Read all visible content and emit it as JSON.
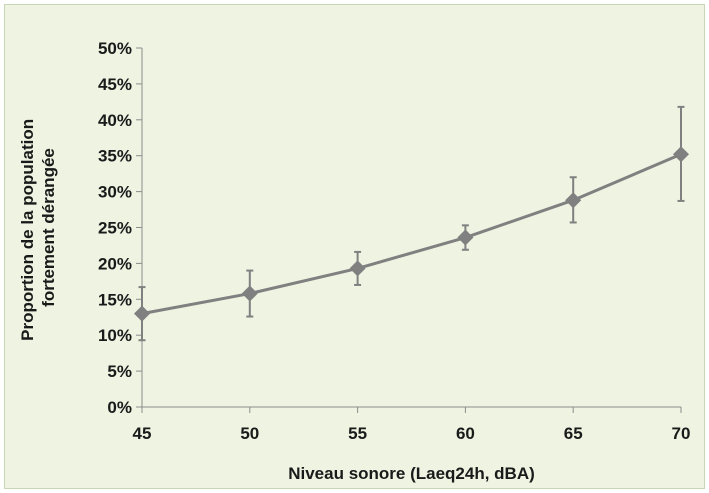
{
  "chart_data": {
    "type": "line",
    "title": "",
    "xlabel": "Niveau sonore (Laeq24h, dBA)",
    "ylabel_lines": [
      "Proportion de la population",
      "fortement dérangée"
    ],
    "x": [
      45,
      50,
      55,
      60,
      65,
      70
    ],
    "x_tick_labels": [
      "45",
      "50",
      "55",
      "60",
      "65",
      "70"
    ],
    "xlim": [
      45,
      70
    ],
    "ylim": [
      0,
      0.5
    ],
    "y_ticks": [
      0,
      0.05,
      0.1,
      0.15,
      0.2,
      0.25,
      0.3,
      0.35,
      0.4,
      0.45,
      0.5
    ],
    "y_tick_labels": [
      "0%",
      "5%",
      "10%",
      "15%",
      "20%",
      "25%",
      "30%",
      "35%",
      "40%",
      "45%",
      "50%"
    ],
    "grid": false,
    "legend": "none",
    "series": [
      {
        "values": [
          0.13,
          0.158,
          0.193,
          0.236,
          0.288,
          0.352
        ],
        "error_low": [
          0.093,
          0.126,
          0.17,
          0.219,
          0.257,
          0.287
        ],
        "error_high": [
          0.167,
          0.19,
          0.216,
          0.253,
          0.32,
          0.418
        ],
        "color": "#808080",
        "marker": "diamond"
      }
    ]
  }
}
